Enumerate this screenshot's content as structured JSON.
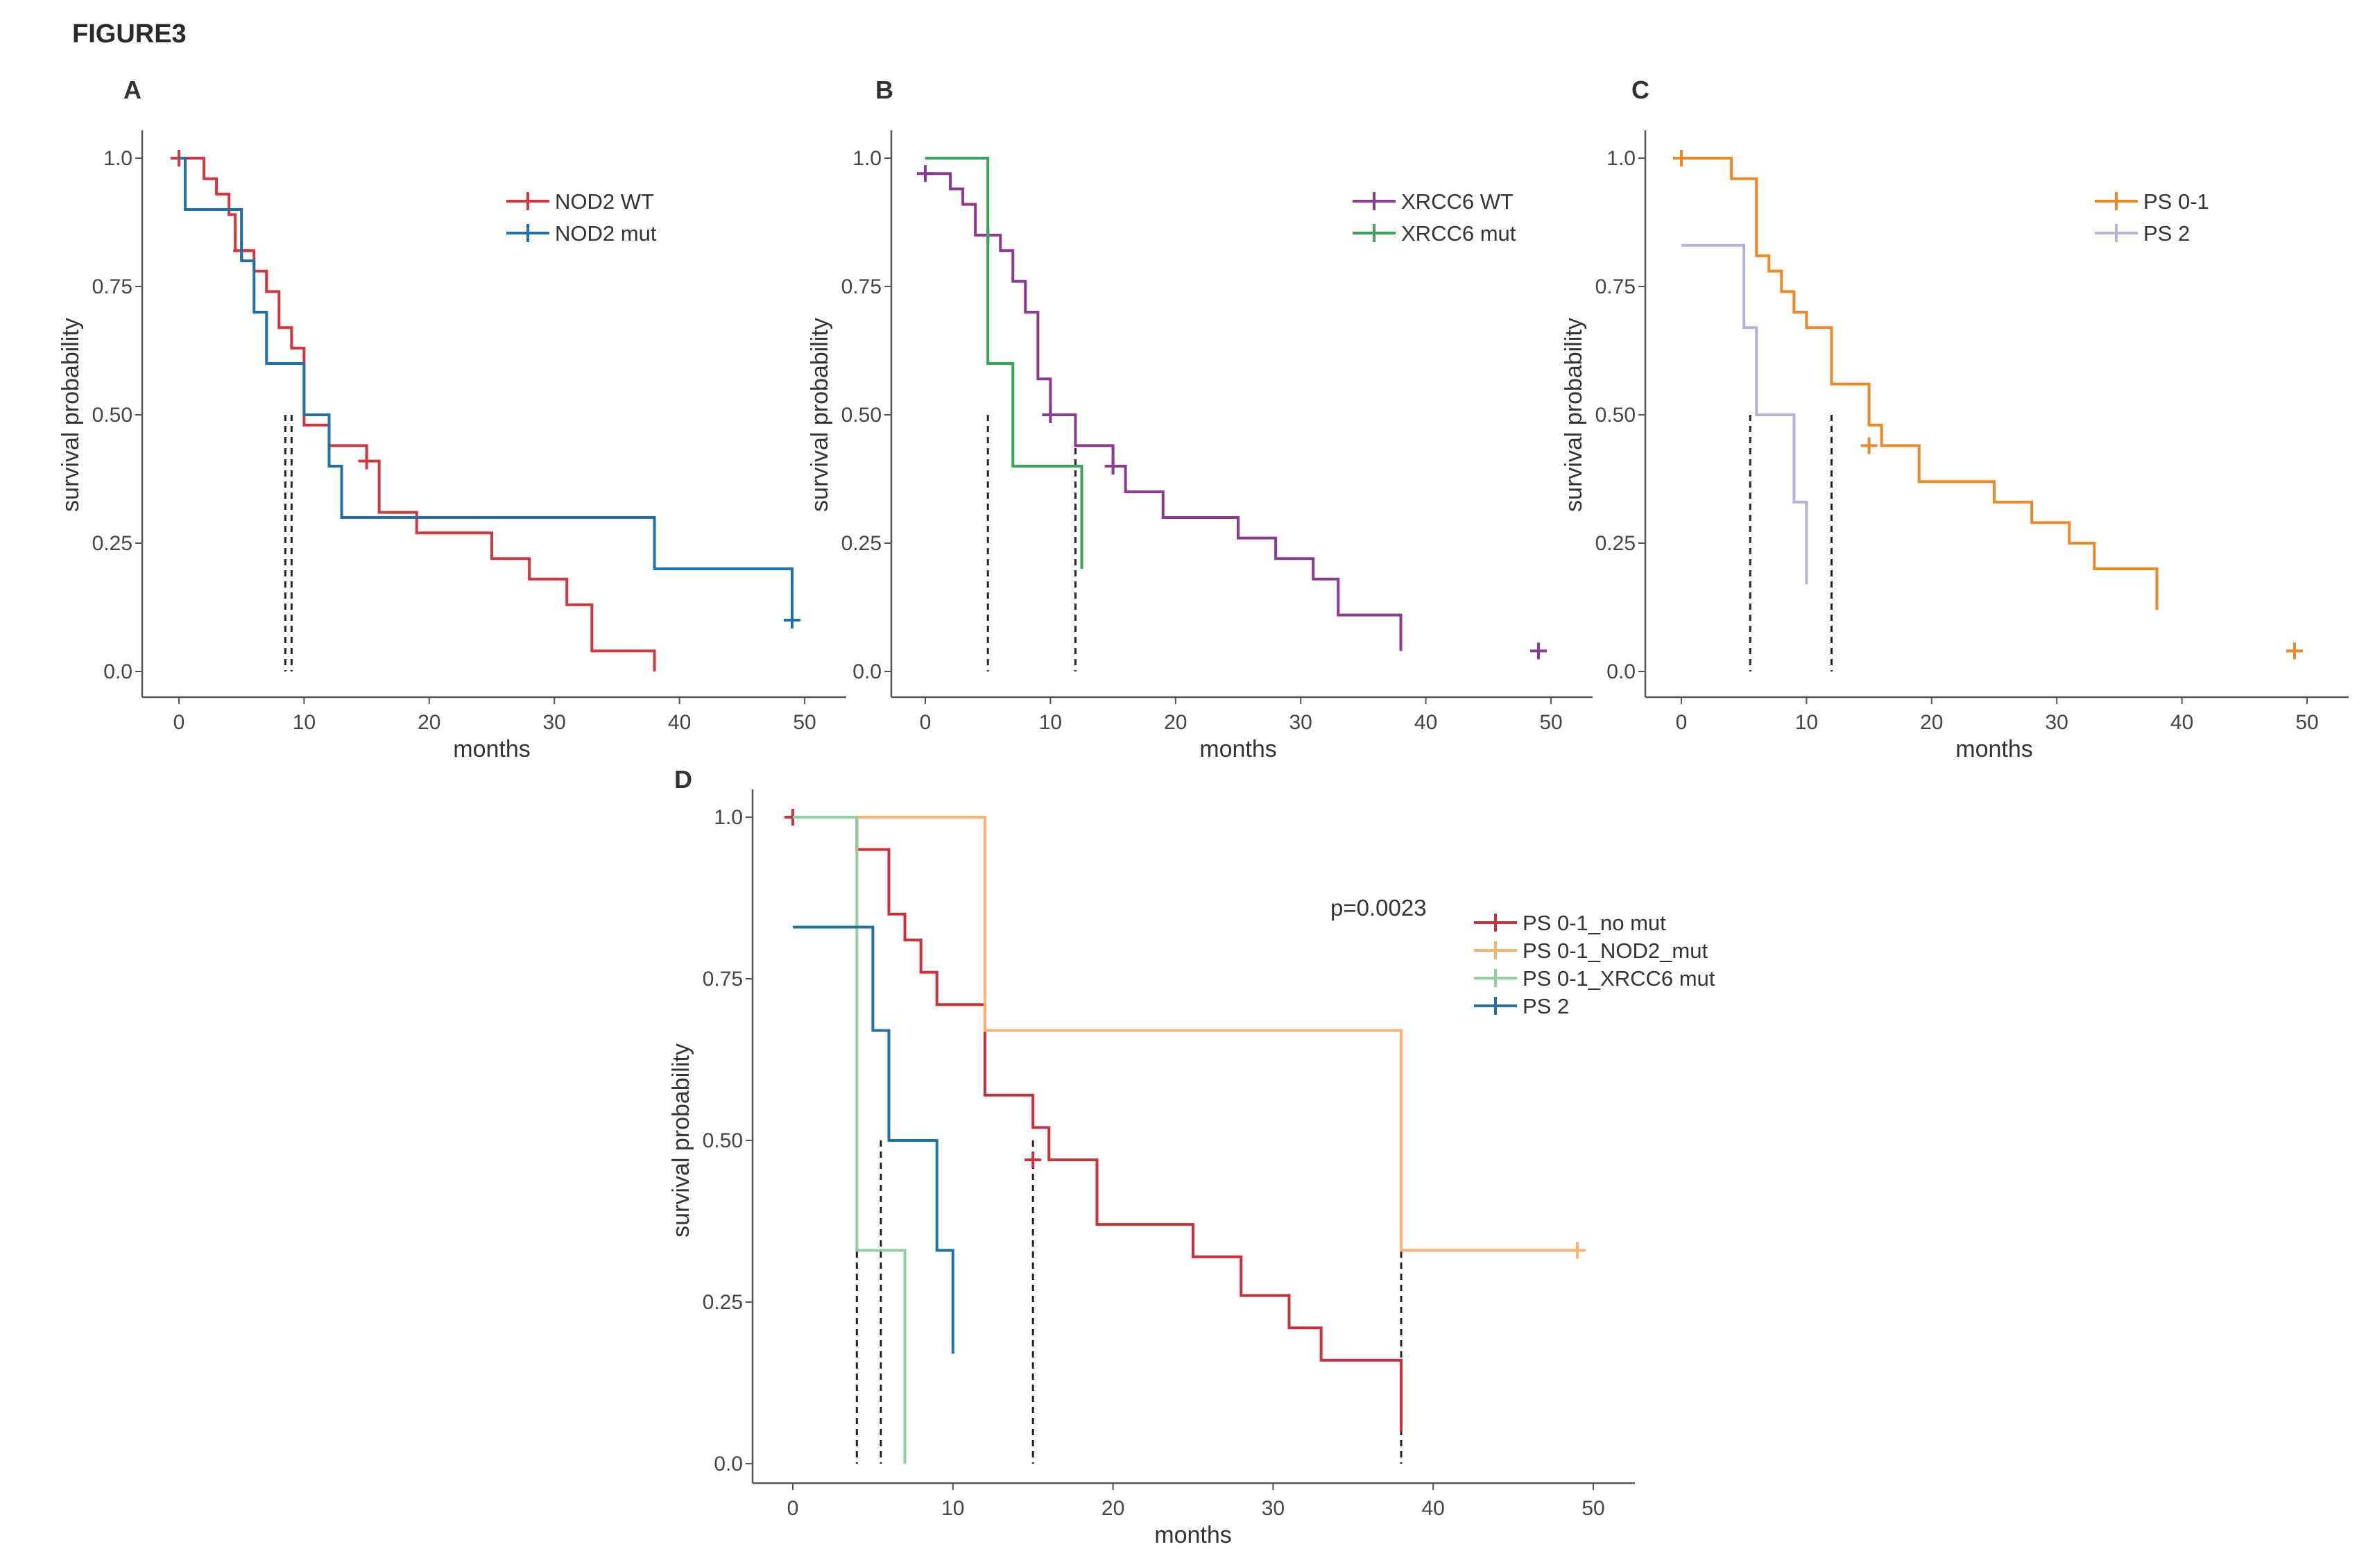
{
  "figure_title": "FIGURE3",
  "chart_data": [
    {
      "panel": "A",
      "type": "line",
      "subtype": "kaplan-meier",
      "xlabel": "months",
      "ylabel": "survival probability",
      "xlim": [
        0,
        50
      ],
      "ylim": [
        0,
        1
      ],
      "xticks": [
        "0",
        "10",
        "20",
        "30",
        "40",
        "50"
      ],
      "yticks": [
        "0.0",
        "0.25",
        "0.50",
        "0.75",
        "1.0"
      ],
      "legend_position": "top-right",
      "series": [
        {
          "name": "NOD2 WT",
          "color": "#d1373f",
          "times": [
            0,
            2,
            3,
            4,
            4.5,
            6,
            7,
            8,
            9,
            10,
            12,
            15,
            16,
            19,
            25,
            28,
            31,
            33,
            38
          ],
          "surv": [
            1.0,
            0.96,
            0.93,
            0.89,
            0.82,
            0.78,
            0.74,
            0.67,
            0.63,
            0.48,
            0.44,
            0.41,
            0.31,
            0.27,
            0.22,
            0.18,
            0.13,
            0.04,
            0.0
          ],
          "censored": [
            [
              0,
              1.0
            ],
            [
              5,
              0.82
            ],
            [
              15,
              0.41
            ]
          ]
        },
        {
          "name": "NOD2 mut",
          "color": "#2270a8",
          "times": [
            0,
            0.5,
            4,
            5,
            6,
            7,
            10,
            12,
            13,
            38,
            49
          ],
          "surv": [
            1.0,
            0.9,
            0.9,
            0.8,
            0.7,
            0.6,
            0.5,
            0.4,
            0.3,
            0.2,
            0.1
          ],
          "censored": [
            [
              49,
              0.1
            ]
          ]
        }
      ],
      "median_lines": [
        8.5,
        9
      ]
    },
    {
      "panel": "B",
      "type": "line",
      "subtype": "kaplan-meier",
      "xlabel": "months",
      "ylabel": "survival probability",
      "xlim": [
        0,
        50
      ],
      "ylim": [
        0,
        1
      ],
      "xticks": [
        "0",
        "10",
        "20",
        "30",
        "40",
        "50"
      ],
      "yticks": [
        "0.0",
        "0.25",
        "0.50",
        "0.75",
        "1.0"
      ],
      "legend_position": "top-right",
      "series": [
        {
          "name": "XRCC6 WT",
          "color": "#8b3a8f",
          "times": [
            0,
            1,
            2,
            3,
            4,
            6,
            7,
            8,
            9,
            10,
            12,
            15,
            16,
            19,
            25,
            28,
            31,
            33,
            38
          ],
          "surv": [
            0.97,
            0.97,
            0.94,
            0.91,
            0.85,
            0.82,
            0.76,
            0.7,
            0.57,
            0.5,
            0.44,
            0.4,
            0.35,
            0.3,
            0.26,
            0.22,
            0.18,
            0.11,
            0.04
          ],
          "censored": [
            [
              0,
              0.97
            ],
            [
              5,
              0.85
            ],
            [
              10,
              0.5
            ],
            [
              15,
              0.4
            ],
            [
              49,
              0.04
            ]
          ]
        },
        {
          "name": "XRCC6 mut",
          "color": "#3aa655",
          "times": [
            0,
            4,
            5,
            7,
            12.5
          ],
          "surv": [
            1.0,
            1.0,
            0.6,
            0.4,
            0.2
          ],
          "censored": []
        }
      ],
      "median_lines": [
        5,
        12
      ]
    },
    {
      "panel": "C",
      "type": "line",
      "subtype": "kaplan-meier",
      "xlabel": "months",
      "ylabel": "survival probability",
      "xlim": [
        0,
        50
      ],
      "ylim": [
        0,
        1
      ],
      "xticks": [
        "0",
        "10",
        "20",
        "30",
        "40",
        "50"
      ],
      "yticks": [
        "0.0",
        "0.25",
        "0.50",
        "0.75",
        "1.0"
      ],
      "legend_position": "top-right",
      "series": [
        {
          "name": "PS 0-1",
          "color": "#ea8a26",
          "times": [
            0,
            3,
            4,
            6,
            7,
            8,
            9,
            10,
            12,
            15,
            16,
            19,
            25,
            28,
            31,
            33,
            38
          ],
          "surv": [
            1.0,
            1.0,
            0.96,
            0.81,
            0.78,
            0.74,
            0.7,
            0.67,
            0.56,
            0.48,
            0.44,
            0.37,
            0.33,
            0.29,
            0.25,
            0.2,
            0.12
          ],
          "censored": [
            [
              0,
              1.0
            ],
            [
              15,
              0.44
            ],
            [
              49,
              0.04
            ]
          ]
        },
        {
          "name": "PS 2",
          "color": "#b6b1d6",
          "times": [
            0,
            2,
            5,
            6,
            9,
            10
          ],
          "surv": [
            0.83,
            0.83,
            0.67,
            0.5,
            0.33,
            0.17
          ],
          "censored": []
        }
      ],
      "median_lines": [
        5.5,
        12
      ]
    },
    {
      "panel": "D",
      "type": "line",
      "subtype": "kaplan-meier",
      "xlabel": "months",
      "ylabel": "survival probability",
      "xlim": [
        0,
        50
      ],
      "ylim": [
        0,
        1
      ],
      "xticks": [
        "0",
        "10",
        "20",
        "30",
        "40",
        "50"
      ],
      "yticks": [
        "0.0",
        "0.25",
        "0.50",
        "0.75",
        "1.0"
      ],
      "annotation": "p=0.0023",
      "legend_position": "top-right",
      "series": [
        {
          "name": "PS 0-1_no mut",
          "color": "#c8323d",
          "times": [
            0,
            3,
            4,
            6,
            7,
            8,
            9,
            12,
            15,
            16,
            19,
            25,
            28,
            31,
            33,
            38
          ],
          "surv": [
            1.0,
            1.0,
            0.95,
            0.85,
            0.81,
            0.76,
            0.71,
            0.57,
            0.52,
            0.47,
            0.37,
            0.32,
            0.26,
            0.21,
            0.16,
            0.05
          ],
          "censored": [
            [
              0,
              1.0
            ],
            [
              15,
              0.47
            ]
          ]
        },
        {
          "name": "PS 0-1_NOD2_mut",
          "color": "#f7b370",
          "times": [
            0,
            12,
            38,
            49
          ],
          "surv": [
            1.0,
            0.67,
            0.33,
            0.33
          ],
          "censored": [
            [
              49,
              0.33
            ]
          ]
        },
        {
          "name": "PS 0-1_XRCC6 mut",
          "color": "#8fd09a",
          "times": [
            0,
            4,
            7
          ],
          "surv": [
            1.0,
            0.33,
            0.0
          ],
          "censored": []
        },
        {
          "name": "PS 2",
          "color": "#2472a4",
          "times": [
            0,
            2,
            5,
            6,
            9,
            10
          ],
          "surv": [
            0.83,
            0.83,
            0.67,
            0.5,
            0.33,
            0.17
          ],
          "censored": []
        }
      ],
      "median_lines": [
        4,
        5.5,
        15,
        38
      ]
    }
  ]
}
